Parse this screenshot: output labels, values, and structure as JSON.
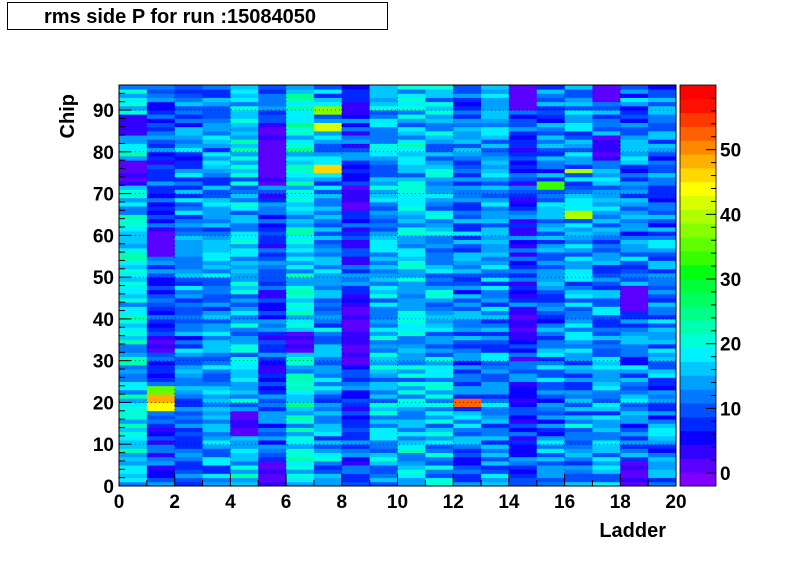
{
  "chart_data": {
    "type": "heatmap",
    "title": "rms side P for run :15084050",
    "xlabel": "Ladder",
    "ylabel": "Chip",
    "xlim": [
      0,
      20
    ],
    "ylim": [
      0,
      96
    ],
    "x_ticks": [
      "0",
      "2",
      "4",
      "6",
      "8",
      "10",
      "12",
      "14",
      "16",
      "18",
      "20"
    ],
    "y_ticks": [
      "0",
      "10",
      "20",
      "30",
      "40",
      "50",
      "60",
      "70",
      "80",
      "90"
    ],
    "colorbar_range": [
      -2,
      60
    ],
    "colorbar_ticks": [
      "0",
      "10",
      "20",
      "30",
      "40",
      "50"
    ],
    "grid": true,
    "palette": [
      "#7f00ff",
      "#5a00ff",
      "#3200ff",
      "#0a00ff",
      "#0028ff",
      "#0050ff",
      "#0078ff",
      "#00a0ff",
      "#00c8ff",
      "#00f0ff",
      "#00ffd8",
      "#00ffb0",
      "#00ff88",
      "#00ff60",
      "#00ff38",
      "#00ff10",
      "#38ff00",
      "#60ff00",
      "#88ff00",
      "#b0ff00",
      "#d8ff00",
      "#ffff00",
      "#ffd800",
      "#ffb000",
      "#ff8800",
      "#ff6000",
      "#ff3800",
      "#ff1000",
      "#ff0000"
    ],
    "n_ladders": 20,
    "n_chips": 96,
    "baseline_by_ladder": [
      17,
      9,
      12,
      13,
      16,
      9,
      18,
      14,
      8,
      15,
      16,
      15,
      12,
      13,
      8,
      12,
      14,
      13,
      12,
      12
    ],
    "spread": 6,
    "hotspots": [
      {
        "ladder": 1,
        "chips": [
          20,
          21
        ],
        "value": 48
      },
      {
        "ladder": 1,
        "chips": [
          18,
          19
        ],
        "value": 44
      },
      {
        "ladder": 1,
        "chips": [
          22,
          23
        ],
        "value": 36
      },
      {
        "ladder": 12,
        "chips": [
          19,
          20
        ],
        "value": 52
      },
      {
        "ladder": 7,
        "chips": [
          75,
          76
        ],
        "value": 46
      },
      {
        "ladder": 7,
        "chips": [
          85,
          86
        ],
        "value": 42
      },
      {
        "ladder": 7,
        "chips": [
          89,
          90
        ],
        "value": 38
      },
      {
        "ladder": 16,
        "chips": [
          64,
          65
        ],
        "value": 40
      },
      {
        "ladder": 16,
        "chips": [
          75
        ],
        "value": 40
      },
      {
        "ladder": 15,
        "chips": [
          71,
          72
        ],
        "value": 34
      }
    ],
    "lowspots": [
      {
        "ladder": 5,
        "chips": [
          72,
          73,
          74,
          75,
          76,
          77,
          78,
          79,
          80,
          81,
          82,
          83,
          84,
          85,
          86
        ]
      },
      {
        "ladder": 8,
        "chips": [
          66,
          67,
          68,
          69,
          70,
          71
        ]
      },
      {
        "ladder": 8,
        "chips": [
          29,
          30,
          31,
          32,
          33,
          34,
          35,
          36,
          37,
          38,
          39,
          40,
          41,
          42
        ]
      },
      {
        "ladder": 1,
        "chips": [
          55,
          56,
          57,
          58,
          59,
          60
        ]
      },
      {
        "ladder": 14,
        "chips": [
          90,
          91,
          92,
          93,
          94,
          95
        ]
      },
      {
        "ladder": 14,
        "chips": [
          36,
          37,
          38,
          39,
          40,
          41,
          42
        ]
      },
      {
        "ladder": 17,
        "chips": [
          78,
          79,
          80,
          81,
          82,
          83
        ]
      },
      {
        "ladder": 18,
        "chips": [
          0,
          1,
          2,
          3,
          4,
          5
        ]
      },
      {
        "ladder": 18,
        "chips": [
          42,
          43,
          44,
          45,
          46,
          47
        ]
      },
      {
        "ladder": 5,
        "chips": [
          0,
          1,
          2,
          3,
          4,
          5
        ]
      },
      {
        "ladder": 6,
        "chips": [
          32,
          33,
          34,
          35,
          36
        ]
      },
      {
        "ladder": 4,
        "chips": [
          12,
          13,
          14,
          15,
          16,
          17
        ]
      },
      {
        "ladder": 0,
        "chips": [
          72,
          73,
          74,
          75,
          76,
          77
        ]
      },
      {
        "ladder": 17,
        "chips": [
          92,
          93,
          94,
          95
        ]
      },
      {
        "ladder": 1,
        "chips": [
          32,
          33,
          34,
          35
        ]
      },
      {
        "ladder": 0,
        "chips": [
          84,
          85,
          86,
          87,
          88
        ]
      }
    ]
  }
}
